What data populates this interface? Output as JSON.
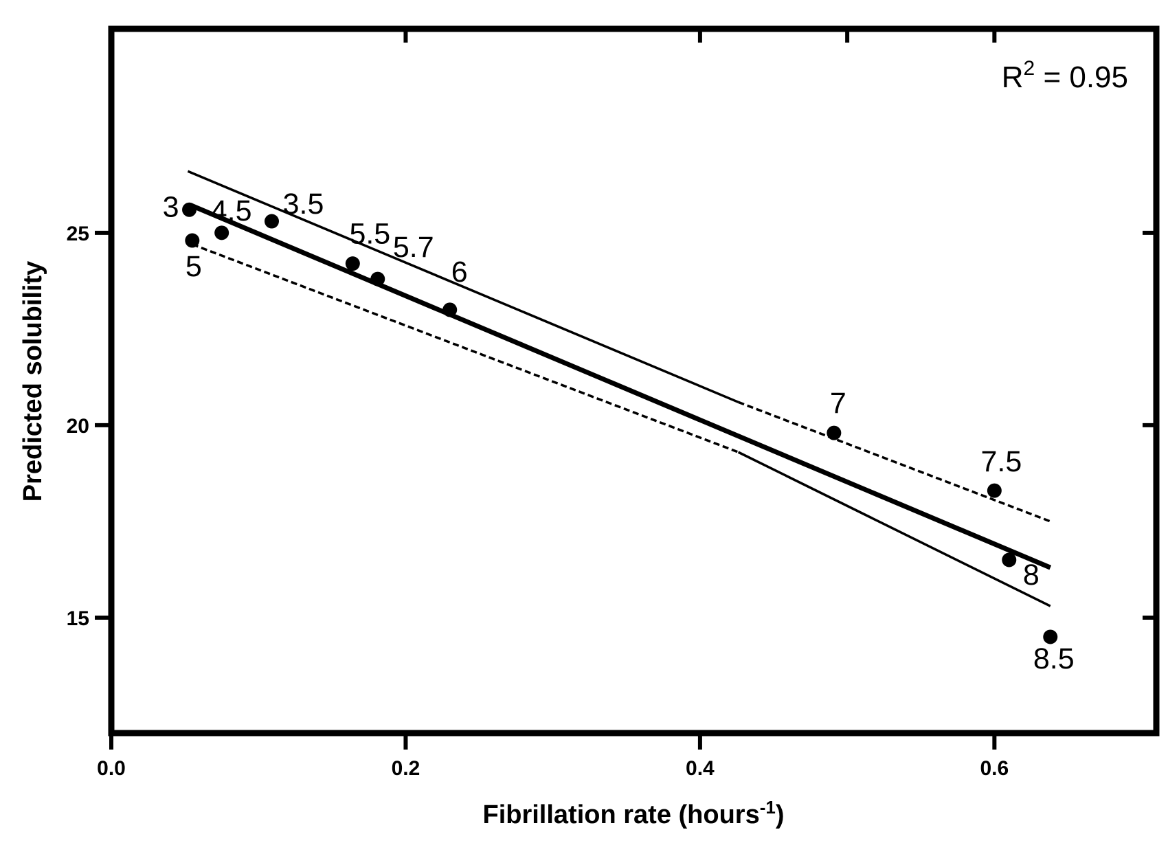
{
  "chart_data": {
    "type": "scatter",
    "title": "",
    "xlabel": "Fibrillation rate (hours",
    "xlabel_sup": "-1",
    "xlabel_close": ")",
    "ylabel": "Predicted solubility",
    "xlim": [
      0.0,
      0.71
    ],
    "ylim": [
      12.0,
      30.3
    ],
    "x_ticks": [
      0.0,
      0.2,
      0.4,
      0.6
    ],
    "x_tick_labels": [
      "0.0",
      "0.2",
      "0.4",
      "0.6"
    ],
    "y_ticks": [
      15,
      20,
      25
    ],
    "y_tick_labels": [
      "15",
      "20",
      "25"
    ],
    "grid": false,
    "annotation": {
      "prefix": "R",
      "sup": "2",
      "value": " = 0.95"
    },
    "points": [
      {
        "label": "3",
        "x": 0.053,
        "y": 25.6
      },
      {
        "label": "5",
        "x": 0.055,
        "y": 24.8
      },
      {
        "label": "4.5",
        "x": 0.075,
        "y": 25.0
      },
      {
        "label": "3.5",
        "x": 0.109,
        "y": 25.3
      },
      {
        "label": "5.5",
        "x": 0.164,
        "y": 24.2
      },
      {
        "label": "5.7",
        "x": 0.181,
        "y": 23.8
      },
      {
        "label": "6",
        "x": 0.23,
        "y": 23.0
      },
      {
        "label": "7",
        "x": 0.491,
        "y": 19.8
      },
      {
        "label": "7.5",
        "x": 0.6,
        "y": 18.3
      },
      {
        "label": "8",
        "x": 0.61,
        "y": 16.5
      },
      {
        "label": "8.5",
        "x": 0.638,
        "y": 14.5
      }
    ],
    "lines": [
      {
        "name": "regression fit",
        "style": "solid-thick",
        "x": [
          0.055,
          0.638
        ],
        "y": [
          25.7,
          16.3
        ]
      },
      {
        "name": "upper band",
        "style": "solid-to-dashed",
        "x": [
          0.052,
          0.426,
          0.638
        ],
        "y": [
          26.6,
          20.6,
          17.5
        ]
      },
      {
        "name": "lower band",
        "style": "dashed-to-solid",
        "x": [
          0.055,
          0.426,
          0.638
        ],
        "y": [
          24.7,
          19.3,
          15.3
        ]
      }
    ]
  }
}
